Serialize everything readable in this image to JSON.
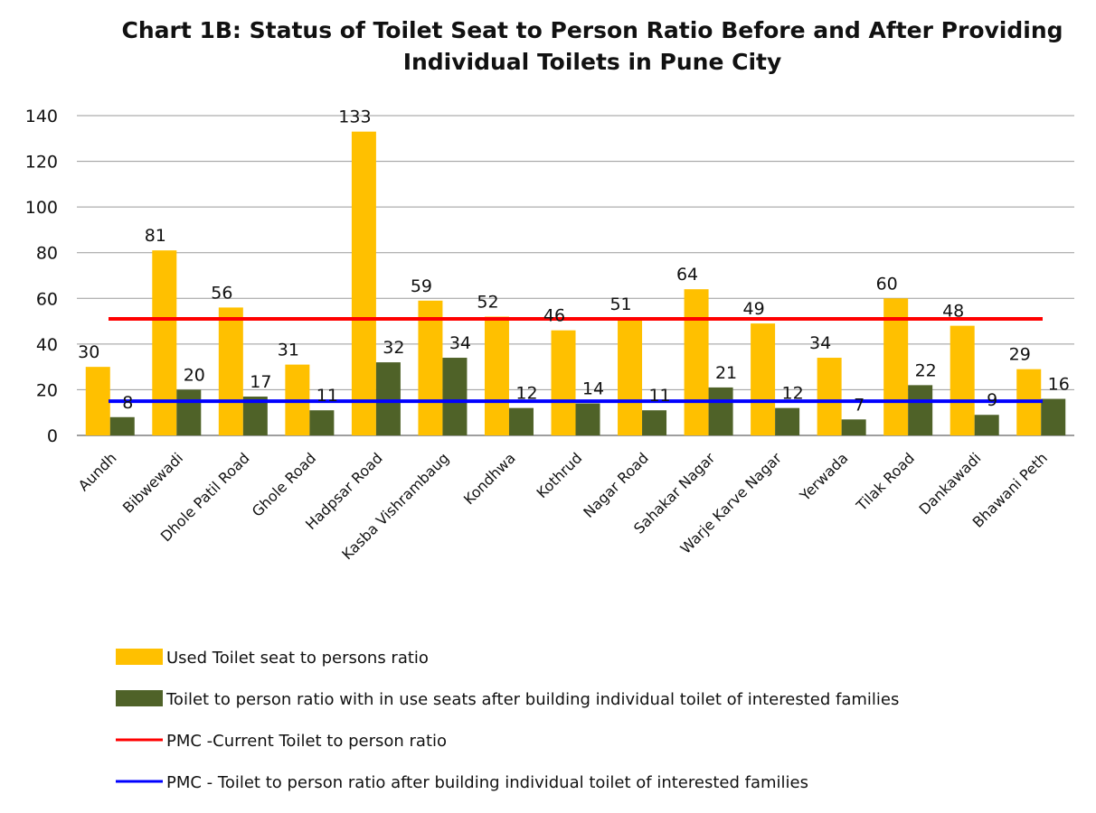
{
  "chart_data": {
    "type": "bar",
    "title_lines": [
      "Chart 1B: Status of Toilet Seat to Person Ratio Before and After Providing",
      "Individual Toilets in Pune City"
    ],
    "xlabel": "",
    "ylabel": "",
    "ylim": [
      0,
      140
    ],
    "yticks": [
      0,
      20,
      40,
      60,
      80,
      100,
      120,
      140
    ],
    "grid": true,
    "legend_position": "bottom",
    "categories": [
      "Aundh",
      "Bibwewadi",
      "Dhole Patil Road",
      "Ghole Road",
      "Hadpsar Road",
      "Kasba Vishrambaug",
      "Kondhwa",
      "Kothrud",
      "Nagar Road",
      "Sahakar Nagar",
      "Warje Karve Nagar",
      "Yerwada",
      "Tilak Road",
      "Dankawadi",
      "Bhawani Peth"
    ],
    "series": [
      {
        "name": "Used Toilet seat to persons ratio",
        "color": "#FFC000",
        "values": [
          30,
          81,
          56,
          31,
          133,
          59,
          52,
          46,
          51,
          64,
          49,
          34,
          60,
          48,
          29
        ]
      },
      {
        "name": "Toilet to person ratio with in use seats after building individual toilet of interested families",
        "color": "#4F6228",
        "values": [
          8,
          20,
          17,
          11,
          32,
          34,
          12,
          14,
          11,
          21,
          12,
          7,
          22,
          9,
          16
        ]
      }
    ],
    "reference_lines": [
      {
        "name": "PMC -Current Toilet to person ratio",
        "color": "#FF0000",
        "value": 51
      },
      {
        "name": "PMC - Toilet to person ratio after building individual toilet of interested families",
        "color": "#0000FF",
        "value": 15
      }
    ]
  }
}
